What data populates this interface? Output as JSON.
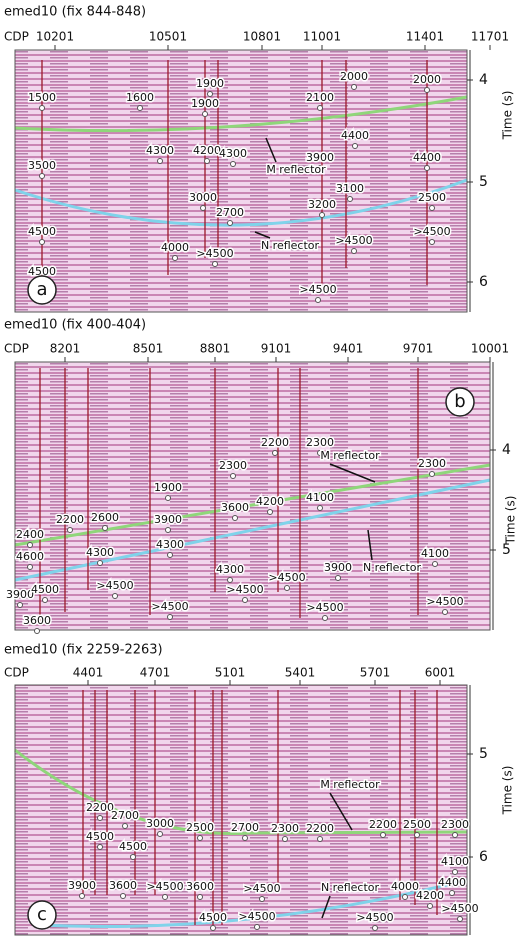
{
  "panels": [
    {
      "title": "emed10 (fix 844-848)",
      "cdp_label": "CDP",
      "cdp_ticks": [
        "10201",
        "10501",
        "10801",
        "11001",
        "11401",
        "11701"
      ],
      "time_ticks": [
        "4",
        "5",
        "6"
      ],
      "time_label": "Time (s)",
      "panel_label": "a",
      "labels": [
        "1500",
        "1600",
        "1900",
        "1900",
        "4300",
        "4200",
        "4300",
        "3500",
        "3000",
        "2700",
        "4500",
        "4000",
        ">4500",
        "2100",
        "2000",
        "2000",
        "4400",
        "3900",
        "4400",
        "3100",
        "3200",
        "2500",
        ">4500",
        ">4500",
        "4500",
        ">4500"
      ],
      "annotations": [
        "M reflector",
        "N reflector"
      ]
    },
    {
      "title": "emed10 (fix 400-404)",
      "cdp_label": "CDP",
      "cdp_ticks": [
        "8201",
        "8501",
        "8801",
        "9101",
        "9401",
        "9701",
        "10001"
      ],
      "time_ticks": [
        "4",
        "5"
      ],
      "time_label": "Time (s)",
      "panel_label": "b",
      "labels": [
        "2400",
        "2200",
        "2600",
        "1900",
        "2300",
        "2200",
        "2300",
        "2300",
        "4200",
        "4100",
        "4100",
        "3900",
        "3600",
        "4300",
        "4300",
        "4600",
        "3900",
        "4500",
        ">4500",
        "4300",
        ">4500",
        ">4500",
        "3900",
        ">4500",
        ">4500",
        ">4500",
        "3600"
      ],
      "annotations": [
        "M reflector",
        "N reflector"
      ]
    },
    {
      "title": "emed10 (fix 2259-2263)",
      "cdp_label": "CDP",
      "cdp_ticks": [
        "4401",
        "4701",
        "5101",
        "5401",
        "5701",
        "6001"
      ],
      "time_ticks": [
        "5",
        "6"
      ],
      "time_label": "Time (s)",
      "panel_label": "c",
      "labels": [
        "2200",
        "2700",
        "3000",
        "2500",
        "2700",
        "2300",
        "2200",
        "2200",
        "2500",
        "2300",
        "4500",
        "4500",
        "4100",
        "3900",
        "3600",
        ">4500",
        "3600",
        ">4500",
        "4000",
        "4200",
        "4400",
        ">4500",
        ">4500",
        "4500",
        ">4500"
      ],
      "annotations": [
        "M reflector",
        "N reflector"
      ]
    }
  ]
}
